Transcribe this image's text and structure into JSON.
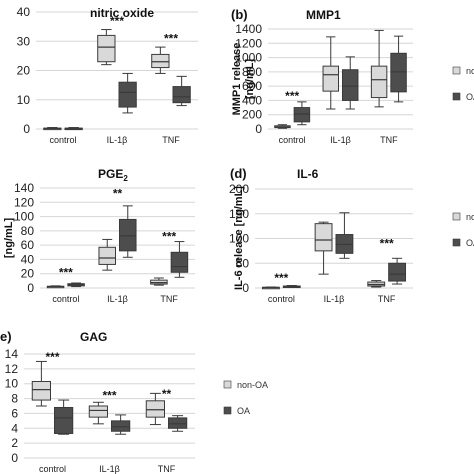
{
  "colors": {
    "non_oa": "#d9d9d9",
    "oa": "#4d4d4d",
    "stroke": "#3a3a3a",
    "grid": "#d6d6d6"
  },
  "legend": {
    "non_oa": "non-OA",
    "oa": "OA"
  },
  "chart_data": [
    {
      "id": "nitric",
      "type": "box",
      "panel_label": "",
      "title": "nitric oxide",
      "ylabel": "",
      "categories": [
        "control",
        "IL-1β",
        "TNF"
      ],
      "ylim": [
        0,
        40
      ],
      "yticks": [
        0,
        10,
        20,
        30,
        40
      ],
      "grid": true,
      "legend_shown": false,
      "series": [
        {
          "name": "non-OA",
          "boxes": [
            {
              "min": 0,
              "q1": 0.1,
              "median": 0.2,
              "q3": 0.3,
              "max": 0.5
            },
            {
              "min": 22,
              "q1": 23,
              "median": 28,
              "q3": 32,
              "max": 34
            },
            {
              "min": 19,
              "q1": 21,
              "median": 23,
              "q3": 25.5,
              "max": 28
            }
          ]
        },
        {
          "name": "OA",
          "boxes": [
            {
              "min": 0,
              "q1": 0.1,
              "median": 0.2,
              "q3": 0.3,
              "max": 0.5
            },
            {
              "min": 5.5,
              "q1": 7.5,
              "median": 12.5,
              "q3": 16,
              "max": 19
            },
            {
              "min": 8,
              "q1": 9,
              "median": 11,
              "q3": 14.5,
              "max": 18
            }
          ]
        }
      ],
      "annotations": [
        {
          "category": 1,
          "text": "***",
          "y": 37
        },
        {
          "category": 2,
          "text": "***",
          "y": 31
        }
      ]
    },
    {
      "id": "mmp1",
      "type": "box",
      "panel_label": "(b)",
      "title": "MMP1",
      "ylabel": "MMP1 release\n[ng/mL]",
      "categories": [
        "control",
        "IL-1β",
        "TNF"
      ],
      "ylim": [
        0,
        1400
      ],
      "yticks": [
        0,
        200,
        400,
        600,
        800,
        1000,
        1200,
        1400
      ],
      "grid": true,
      "legend_shown": true,
      "series": [
        {
          "name": "non-OA",
          "boxes": [
            {
              "min": 10,
              "q1": 20,
              "median": 30,
              "q3": 45,
              "max": 60
            },
            {
              "min": 280,
              "q1": 530,
              "median": 760,
              "q3": 880,
              "max": 1290
            },
            {
              "min": 310,
              "q1": 440,
              "median": 690,
              "q3": 880,
              "max": 1380
            }
          ]
        },
        {
          "name": "OA",
          "boxes": [
            {
              "min": 60,
              "q1": 100,
              "median": 210,
              "q3": 300,
              "max": 380
            },
            {
              "min": 280,
              "q1": 400,
              "median": 600,
              "q3": 830,
              "max": 1010
            },
            {
              "min": 380,
              "q1": 520,
              "median": 800,
              "q3": 1060,
              "max": 1300
            }
          ]
        }
      ],
      "annotations": [
        {
          "category": 0,
          "text": "***",
          "y": 460
        }
      ]
    },
    {
      "id": "pge2",
      "type": "box",
      "panel_label": "",
      "title": "PGE",
      "title_sub": "2",
      "ylabel": "[ng/mL]",
      "categories": [
        "control",
        "IL-1β",
        "TNF"
      ],
      "ylim": [
        0,
        140
      ],
      "yticks": [
        0,
        20,
        40,
        60,
        80,
        100,
        120,
        140
      ],
      "grid": true,
      "legend_shown": false,
      "series": [
        {
          "name": "non-OA",
          "boxes": [
            {
              "min": 1,
              "q1": 1.5,
              "median": 2,
              "q3": 2.5,
              "max": 3
            },
            {
              "min": 25,
              "q1": 33,
              "median": 42,
              "q3": 57,
              "max": 68
            },
            {
              "min": 4,
              "q1": 5.5,
              "median": 7.5,
              "q3": 11,
              "max": 14
            }
          ]
        },
        {
          "name": "OA",
          "boxes": [
            {
              "min": 2,
              "q1": 3,
              "median": 4.5,
              "q3": 6,
              "max": 7
            },
            {
              "min": 43,
              "q1": 52,
              "median": 73,
              "q3": 96,
              "max": 115
            },
            {
              "min": 15,
              "q1": 22,
              "median": 30,
              "q3": 50,
              "max": 65
            }
          ]
        }
      ],
      "annotations": [
        {
          "category": 0,
          "text": "***",
          "y": 22
        },
        {
          "category": 1,
          "text": "**",
          "y": 132
        },
        {
          "category": 2,
          "text": "***",
          "y": 72
        }
      ]
    },
    {
      "id": "il6",
      "type": "box",
      "panel_label": "(d)",
      "title": "IL-6",
      "ylabel": "IL-6 release [ng/mL]",
      "categories": [
        "control",
        "IL-1β",
        "TNF"
      ],
      "ylim": [
        0,
        200
      ],
      "yticks": [
        0,
        50,
        100,
        150,
        200
      ],
      "grid": true,
      "legend_shown": true,
      "series": [
        {
          "name": "non-OA",
          "boxes": [
            {
              "min": 0,
              "q1": 0.5,
              "median": 1,
              "q3": 1.5,
              "max": 2
            },
            {
              "min": 28,
              "q1": 75,
              "median": 97,
              "q3": 130,
              "max": 133
            },
            {
              "min": 2,
              "q1": 4,
              "median": 7,
              "q3": 12,
              "max": 15
            }
          ]
        },
        {
          "name": "OA",
          "boxes": [
            {
              "min": 1,
              "q1": 2,
              "median": 3,
              "q3": 4,
              "max": 5
            },
            {
              "min": 60,
              "q1": 70,
              "median": 88,
              "q3": 108,
              "max": 152
            },
            {
              "min": 8,
              "q1": 14,
              "median": 28,
              "q3": 50,
              "max": 60
            }
          ]
        }
      ],
      "annotations": [
        {
          "category": 0,
          "text": "***",
          "y": 20
        },
        {
          "category": 2,
          "text": "***",
          "y": 90
        }
      ]
    },
    {
      "id": "gag",
      "type": "box",
      "panel_label": "e)",
      "title": "GAG",
      "ylabel": "",
      "categories": [
        "control",
        "IL-1β",
        "TNF"
      ],
      "ylim": [
        0,
        14
      ],
      "yticks": [
        0,
        2,
        4,
        6,
        8,
        10,
        12,
        14
      ],
      "grid": true,
      "legend_shown": true,
      "series": [
        {
          "name": "non-OA",
          "boxes": [
            {
              "min": 7,
              "q1": 7.8,
              "median": 9.2,
              "q3": 10.3,
              "max": 13
            },
            {
              "min": 4.6,
              "q1": 5.5,
              "median": 6.4,
              "q3": 7,
              "max": 7.5
            },
            {
              "min": 4.5,
              "q1": 5.5,
              "median": 6.5,
              "q3": 7.7,
              "max": 8.7
            }
          ]
        },
        {
          "name": "OA",
          "boxes": [
            {
              "min": 3.2,
              "q1": 3.3,
              "median": 5.4,
              "q3": 6.8,
              "max": 7.8
            },
            {
              "min": 3.2,
              "q1": 3.6,
              "median": 4.2,
              "q3": 5,
              "max": 5.8
            },
            {
              "min": 3.6,
              "q1": 4,
              "median": 4.6,
              "q3": 5.4,
              "max": 5.7
            }
          ]
        }
      ],
      "annotations": [
        {
          "category": 0,
          "text": "***",
          "y": 13.6
        },
        {
          "category": 1,
          "text": "***",
          "y": 8.4
        },
        {
          "category": 2,
          "text": "**",
          "y": 8.6
        }
      ]
    }
  ]
}
